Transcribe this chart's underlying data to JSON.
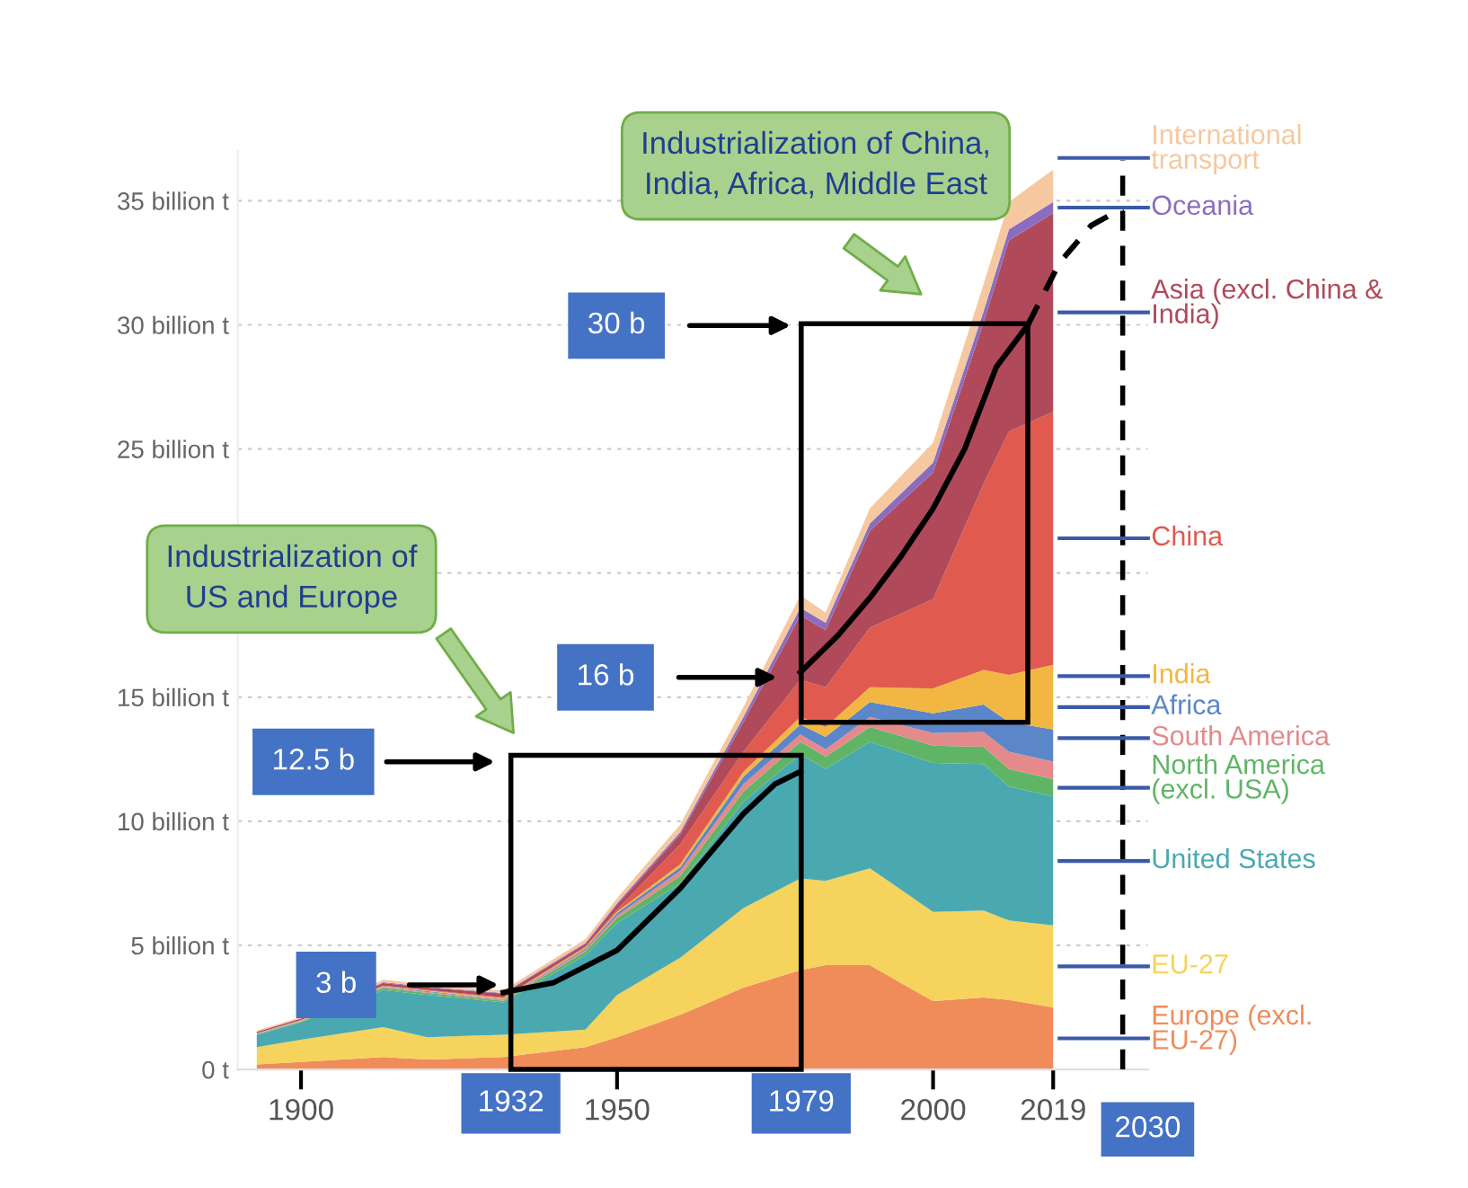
{
  "chart_data": {
    "type": "area",
    "stacked": true,
    "x": [
      1893,
      1900,
      1913,
      1920,
      1932,
      1945,
      1950,
      1960,
      1970,
      1979,
      1983,
      1990,
      2000,
      2008,
      2012,
      2019
    ],
    "series": [
      {
        "name": "Europe (excl.\nEU-27)",
        "color": "#f08c5a",
        "values": [
          0.2,
          0.3,
          0.5,
          0.4,
          0.5,
          0.9,
          1.3,
          2.2,
          3.3,
          4.0,
          4.2,
          4.2,
          2.75,
          2.9,
          2.8,
          2.5
        ]
      },
      {
        "name": "EU-27",
        "color": "#f5d35c",
        "values": [
          0.7,
          0.9,
          1.2,
          0.9,
          0.9,
          0.7,
          1.7,
          2.3,
          3.2,
          3.7,
          3.4,
          3.9,
          3.6,
          3.5,
          3.2,
          3.3
        ]
      },
      {
        "name": "United States",
        "color": "#4aa9b0",
        "values": [
          0.5,
          0.7,
          1.5,
          1.7,
          1.3,
          3.0,
          2.9,
          3.0,
          4.3,
          5.0,
          4.5,
          5.1,
          6.0,
          5.9,
          5.4,
          5.2
        ]
      },
      {
        "name": "North America\n(excl. USA)",
        "color": "#5fb565",
        "values": [
          0.02,
          0.03,
          0.08,
          0.08,
          0.06,
          0.15,
          0.2,
          0.3,
          0.4,
          0.5,
          0.5,
          0.6,
          0.7,
          0.7,
          0.7,
          0.7
        ]
      },
      {
        "name": "South America",
        "color": "#e48a8a",
        "values": [
          0.01,
          0.02,
          0.03,
          0.04,
          0.04,
          0.07,
          0.1,
          0.2,
          0.3,
          0.3,
          0.3,
          0.4,
          0.5,
          0.6,
          0.7,
          0.7
        ]
      },
      {
        "name": "Africa",
        "color": "#5b86c9",
        "values": [
          0.01,
          0.01,
          0.02,
          0.03,
          0.03,
          0.05,
          0.1,
          0.15,
          0.3,
          0.4,
          0.5,
          0.6,
          0.8,
          1.1,
          1.2,
          1.3
        ]
      },
      {
        "name": "India",
        "color": "#f2b742",
        "values": [
          0.01,
          0.02,
          0.03,
          0.03,
          0.04,
          0.05,
          0.06,
          0.12,
          0.2,
          0.3,
          0.4,
          0.6,
          1.0,
          1.4,
          1.9,
          2.6
        ]
      },
      {
        "name": "China",
        "color": "#e05a50",
        "values": [
          0.01,
          0.01,
          0.02,
          0.02,
          0.03,
          0.03,
          0.08,
          0.8,
          0.8,
          1.5,
          1.6,
          2.4,
          3.6,
          7.5,
          9.8,
          10.2
        ]
      },
      {
        "name": "Asia (excl. China &\nIndia)",
        "color": "#b04a5a",
        "values": [
          0.05,
          0.06,
          0.1,
          0.1,
          0.15,
          0.1,
          0.2,
          0.4,
          1.2,
          2.6,
          2.3,
          3.9,
          5.1,
          6.5,
          7.7,
          8.0
        ]
      },
      {
        "name": "Oceania",
        "color": "#8a6dbf",
        "values": [
          0.01,
          0.01,
          0.03,
          0.03,
          0.03,
          0.05,
          0.06,
          0.1,
          0.2,
          0.3,
          0.3,
          0.3,
          0.4,
          0.45,
          0.45,
          0.45
        ]
      },
      {
        "name": "International\ntransport",
        "color": "#f5c8a0",
        "values": [
          0.05,
          0.05,
          0.1,
          0.1,
          0.1,
          0.15,
          0.2,
          0.3,
          0.4,
          0.5,
          0.4,
          0.6,
          0.8,
          1.1,
          1.1,
          1.3
        ]
      },
      {
        "type": "line",
        "color": "#000000",
        "x": [
          1932,
          1940,
          1950,
          1960,
          1970,
          1975,
          1979
        ],
        "values": [
          3.1,
          3.5,
          4.8,
          7.3,
          10.3,
          11.5,
          12.0
        ]
      },
      {
        "type": "line",
        "color": "#000000",
        "x": [
          1979,
          1985,
          1990,
          1995,
          2000,
          2005,
          2010,
          2015
        ],
        "values": [
          16,
          17.5,
          19,
          20.7,
          22.6,
          25,
          28.3,
          30
        ]
      },
      {
        "type": "line",
        "color": "#000000",
        "line_style": "dashed",
        "x": [
          2015,
          2020,
          2025,
          2030
        ],
        "values": [
          30,
          32.5,
          34,
          34.7
        ]
      }
    ],
    "xlim": [
      1890,
      2034
    ],
    "xticks": [
      1900,
      1950,
      2000,
      2019
    ],
    "ylim": [
      0,
      37
    ],
    "yticks": [
      {
        "value": 0,
        "label": "0 t"
      },
      {
        "value": 5,
        "label": "5 billion t"
      },
      {
        "value": 10,
        "label": "10 billion t"
      },
      {
        "value": 15,
        "label": "15 billion t"
      },
      {
        "value": 20,
        "label": null
      },
      {
        "value": 25,
        "label": "25 billion t"
      },
      {
        "value": 30,
        "label": "30 billion t"
      },
      {
        "value": 35,
        "label": "35 billion t"
      }
    ],
    "grid": "y",
    "legend": false,
    "ref_lines": [
      {
        "axis": "x",
        "value": 2030,
        "label": "2030",
        "line_style": "dashed",
        "color": "#000000"
      }
    ],
    "annotations": [
      "3 b",
      "12.5 b",
      "16 b",
      "30 b",
      "1932",
      "1979",
      "Industrialization of\nUS and Europe",
      "Industrialization of China,\nIndia, Africa, Middle East"
    ]
  }
}
